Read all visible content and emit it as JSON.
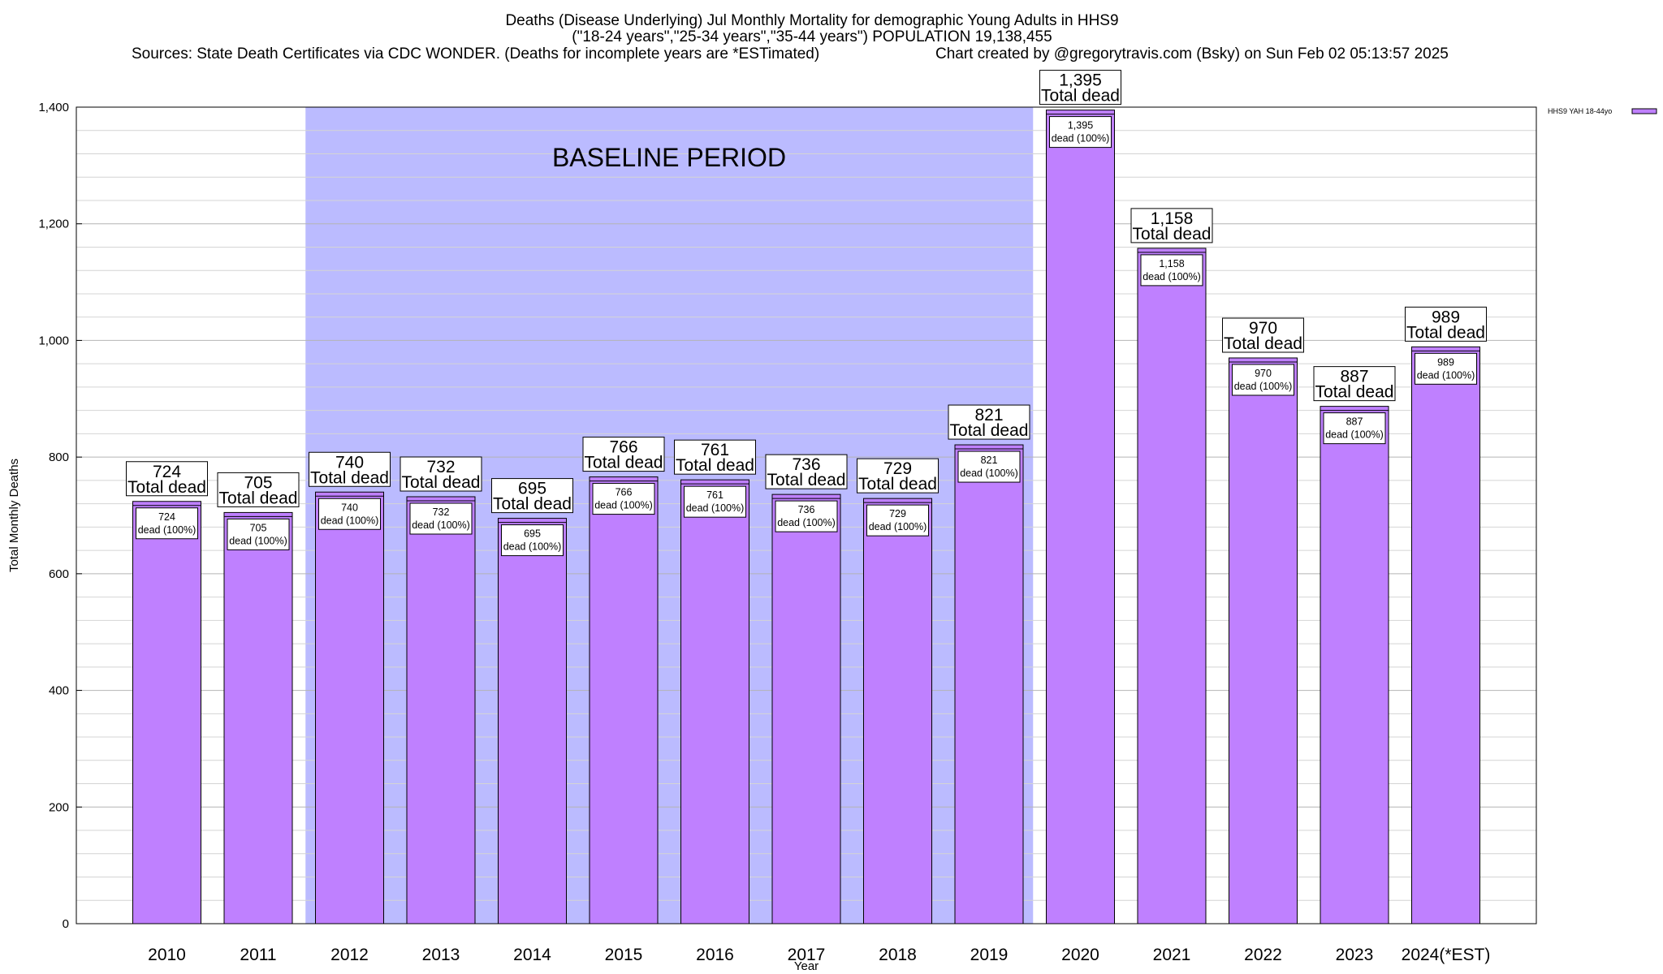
{
  "chart_data": {
    "type": "bar",
    "title_lines": [
      "Deaths (Disease Underlying) Jul Monthly Mortality for demographic Young Adults in HHS9",
      "(\"18-24 years\",\"25-34 years\",\"35-44 years\") POPULATION 19,138,455"
    ],
    "source": "Sources: State Death Certificates via CDC WONDER. (Deaths for incomplete years are *ESTimated)",
    "credit": "Chart created by @gregorytravis.com (Bsky) on Sun Feb 02 05:13:57 2025",
    "xlabel": "Year",
    "ylabel": "Total Monthly Deaths",
    "ylim": [
      0,
      1400
    ],
    "yticks": [
      "0",
      "200",
      "400",
      "600",
      "800",
      "1,000",
      "1,200",
      "1,400"
    ],
    "categories": [
      "2010",
      "2011",
      "2012",
      "2013",
      "2014",
      "2015",
      "2016",
      "2017",
      "2018",
      "2019",
      "2020",
      "2021",
      "2022",
      "2023",
      "2024(*EST)"
    ],
    "values": [
      724,
      705,
      740,
      732,
      695,
      766,
      761,
      736,
      729,
      821,
      1395,
      1158,
      970,
      887,
      989
    ],
    "value_labels": [
      "724",
      "705",
      "740",
      "732",
      "695",
      "766",
      "761",
      "736",
      "729",
      "821",
      "1,395",
      "1,158",
      "970",
      "887",
      "989"
    ],
    "top_label_text": "Total dead",
    "inner_label_text": "dead (100%)",
    "legend": {
      "label": "HHS9 YAH 18-44yo",
      "placement": "top-right"
    },
    "baseline_period": {
      "label": "BASELINE PERIOD",
      "from": "2012",
      "to": "2019"
    },
    "grid": true,
    "colors": {
      "bar": "#bf80ff",
      "baseline": "#bbbbff",
      "grid": "#c8c8c8"
    }
  }
}
